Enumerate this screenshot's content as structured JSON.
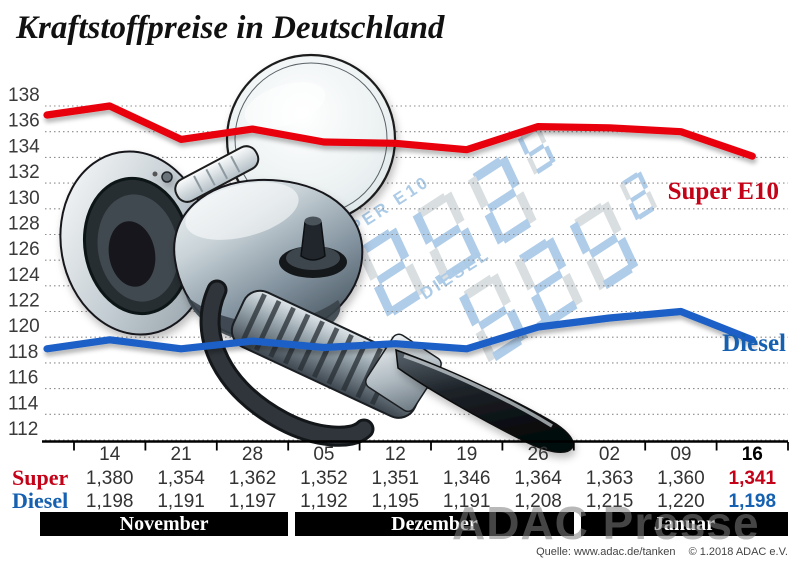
{
  "title": "Kraftstoffpreise in Deutschland",
  "watermark": "ADAC Presse",
  "source": {
    "quelle": "Quelle: www.adac.de/tanken",
    "copyright": "© 1.2018 ADAC e.V."
  },
  "series_labels": {
    "super": "Super E10",
    "diesel": "Diesel"
  },
  "colors": {
    "super_line": "#e8000f",
    "super_text": "#c40218",
    "diesel_line": "#1b5fc6",
    "diesel_text": "#1560b0",
    "grid": "#8c8c8c",
    "axis": "#000000",
    "month_bar": "#000000",
    "segment_blue": "#a9c8e7",
    "segment_gray": "#d6dcdf"
  },
  "illustration": {
    "items": [
      "magnifier-lens",
      "fuel-nozzle",
      "hose-ring"
    ],
    "display_labels": [
      "SUPER E10",
      "DIESEL"
    ],
    "display_digits": "888"
  },
  "chart_data": {
    "type": "line",
    "x": [
      "14",
      "21",
      "28",
      "05",
      "12",
      "19",
      "26",
      "02",
      "09",
      "16"
    ],
    "months": [
      {
        "label": "November",
        "span": 3
      },
      {
        "label": "Dezember",
        "span": 4
      },
      {
        "label": "Januar",
        "span": 3
      }
    ],
    "ylim": [
      112,
      138
    ],
    "yticks": [
      138,
      136,
      134,
      132,
      130,
      128,
      126,
      124,
      122,
      120,
      118,
      116,
      114,
      112
    ],
    "grid": true,
    "legend_position": "right-inline",
    "series": [
      {
        "name": "Super",
        "display": "Super E10",
        "values_cents": [
          138.0,
          135.4,
          136.2,
          135.2,
          135.1,
          134.6,
          136.4,
          136.3,
          136.0,
          134.1
        ],
        "table": [
          "1,380",
          "1,354",
          "1,362",
          "1,352",
          "1,351",
          "1,346",
          "1,364",
          "1,363",
          "1,360",
          "1,341"
        ]
      },
      {
        "name": "Diesel",
        "display": "Diesel",
        "values_cents": [
          119.8,
          119.1,
          119.7,
          119.2,
          119.5,
          119.1,
          120.8,
          121.5,
          122.0,
          119.8
        ],
        "table": [
          "1,198",
          "1,191",
          "1,197",
          "1,192",
          "1,195",
          "1,191",
          "1,208",
          "1,215",
          "1,220",
          "1,198"
        ]
      }
    ],
    "table_row_labels": [
      "Super",
      "Diesel"
    ]
  }
}
